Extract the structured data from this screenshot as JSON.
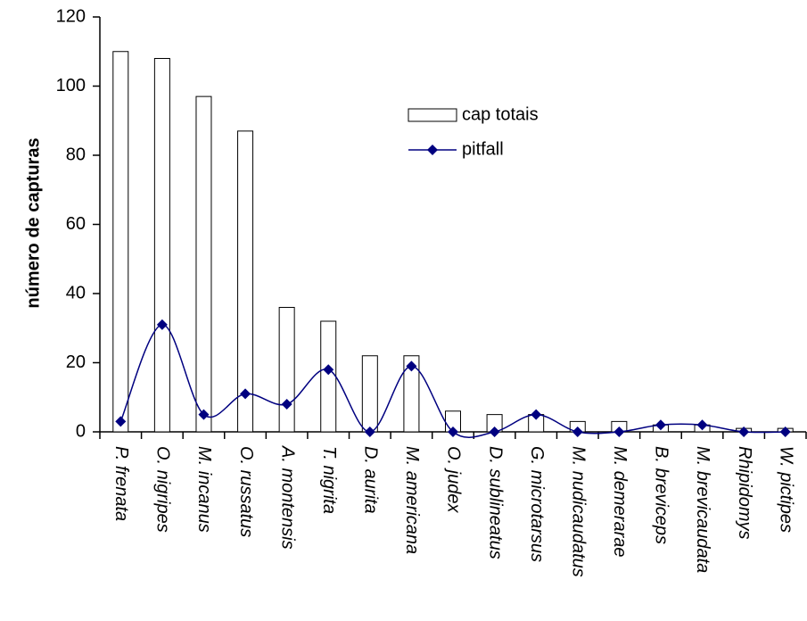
{
  "chart_data": {
    "type": "bar",
    "y_label": "número de capturas",
    "categories": [
      "P. frenata",
      "O. nigripes",
      "M. incanus",
      "O. russatus",
      "A. montensis",
      "T. nigrita",
      "D. aurita",
      "M. americana",
      "O. judex",
      "D. sublineatus",
      "G. microtarsus",
      "M. nudicaudatus",
      "M. demerarae",
      "B. breviceps",
      "M. brevicaudata",
      "Rhipidomys",
      "W. pictipes"
    ],
    "series": [
      {
        "name": "cap totais",
        "type": "bar",
        "color": "#ffffff",
        "values": [
          110,
          108,
          97,
          87,
          36,
          32,
          22,
          22,
          6,
          5,
          5,
          3,
          3,
          2,
          2,
          1,
          1
        ]
      },
      {
        "name": "pitfall",
        "type": "line",
        "color": "#000080",
        "values": [
          3,
          31,
          5,
          11,
          8,
          18,
          0,
          19,
          0,
          0,
          5,
          0,
          0,
          2,
          2,
          0,
          0
        ]
      }
    ],
    "ylim": [
      0,
      120
    ],
    "yticks": [
      0,
      20,
      40,
      60,
      80,
      100,
      120
    ]
  }
}
